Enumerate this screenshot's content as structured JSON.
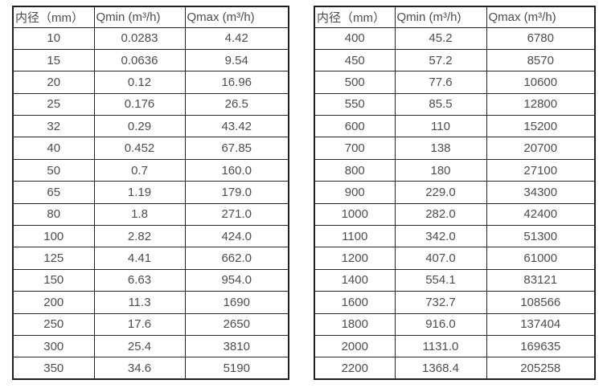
{
  "colors": {
    "background": "#ffffff",
    "border": "#262626",
    "text": "#4d4d4d"
  },
  "tables": [
    {
      "name": "small-diameters",
      "headers": [
        "内径（mm）",
        "Qmin (m³/h)",
        "Qmax (m³/h)"
      ],
      "rows": [
        [
          "10",
          "0.0283",
          "4.42"
        ],
        [
          "15",
          "0.0636",
          "9.54"
        ],
        [
          "20",
          "0.12",
          "16.96"
        ],
        [
          "25",
          "0.176",
          "26.5"
        ],
        [
          "32",
          "0.29",
          "43.42"
        ],
        [
          "40",
          "0.452",
          "67.85"
        ],
        [
          "50",
          "0.7",
          "160.0"
        ],
        [
          "65",
          "1.19",
          "179.0"
        ],
        [
          "80",
          "1.8",
          "271.0"
        ],
        [
          "100",
          "2.82",
          "424.0"
        ],
        [
          "125",
          "4.41",
          "662.0"
        ],
        [
          "150",
          "6.63",
          "954.0"
        ],
        [
          "200",
          "11.3",
          "1690"
        ],
        [
          "250",
          "17.6",
          "2650"
        ],
        [
          "300",
          "25.4",
          "3810"
        ],
        [
          "350",
          "34.6",
          "5190"
        ]
      ]
    },
    {
      "name": "large-diameters",
      "headers": [
        "内径（mm）",
        "Qmin (m³/h)",
        "Qmax (m³/h)"
      ],
      "rows": [
        [
          "400",
          "45.2",
          "6780"
        ],
        [
          "450",
          "57.2",
          "8570"
        ],
        [
          "500",
          "77.6",
          "10600"
        ],
        [
          "550",
          "85.5",
          "12800"
        ],
        [
          "600",
          "110",
          "15200"
        ],
        [
          "700",
          "138",
          "20700"
        ],
        [
          "800",
          "180",
          "27100"
        ],
        [
          "900",
          "229.0",
          "34300"
        ],
        [
          "1000",
          "282.0",
          "42400"
        ],
        [
          "1100",
          "342.0",
          "51300"
        ],
        [
          "1200",
          "407.0",
          "61000"
        ],
        [
          "1400",
          "554.1",
          "83121"
        ],
        [
          "1600",
          "732.7",
          "108566"
        ],
        [
          "1800",
          "916.0",
          "137404"
        ],
        [
          "2000",
          "1131.0",
          "169635"
        ],
        [
          "2200",
          "1368.4",
          "205258"
        ]
      ]
    }
  ]
}
